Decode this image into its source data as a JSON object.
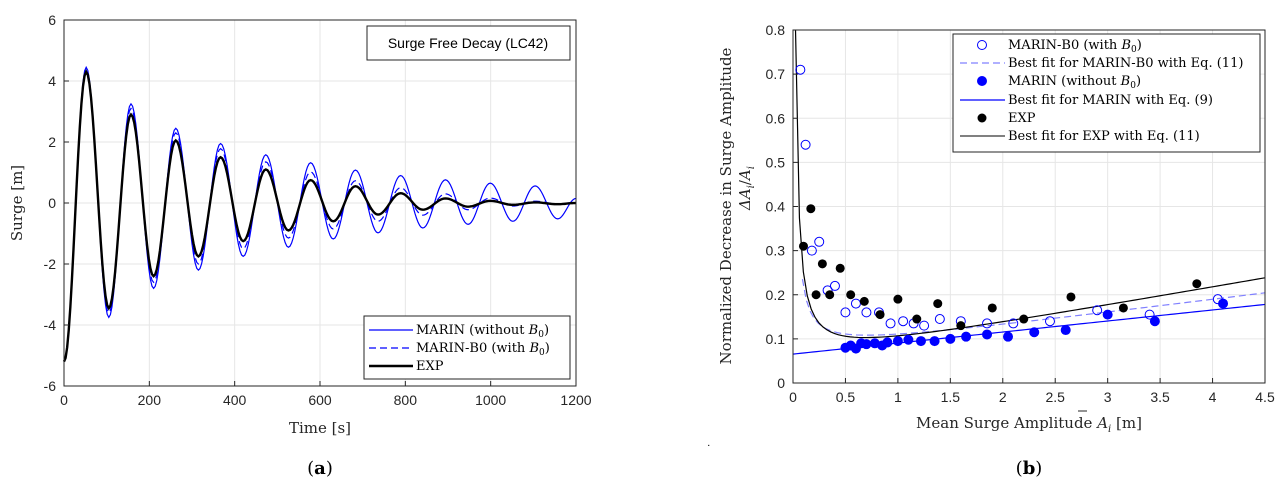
{
  "colors": {
    "marin": "#0000ff",
    "marin_b0": "#0000ff",
    "exp": "#000000",
    "fit_b0": "#8080ff",
    "grid": "#e6e6e6"
  },
  "chart_data": [
    {
      "type": "line",
      "title": "Surge Free Decay (LC42)",
      "xlabel": "Time [s]",
      "ylabel": "Surge [m]",
      "xlim": [
        0,
        1200
      ],
      "ylim": [
        -6,
        6
      ],
      "xticks": [
        "0",
        "200",
        "400",
        "600",
        "800",
        "1000",
        "1200"
      ],
      "yticks": [
        "-6",
        "-4",
        "-2",
        "0",
        "2",
        "4",
        "6"
      ],
      "grid": true,
      "legend_position": "bottom-right",
      "panel_label": "a",
      "series": [
        {
          "name": "MARIN (without B0)",
          "legend_label": "MARIN (without ",
          "legend_math": "B",
          "legend_sub": "0",
          "legend_end": ")",
          "style": "solid",
          "period": 105.3,
          "x0": 0,
          "y0": -5.2,
          "peaks": [
            [
              52,
              4.45
            ],
            [
              157,
              3.25
            ],
            [
              262,
              2.45
            ],
            [
              367,
              1.95
            ],
            [
              473,
              1.58
            ],
            [
              578,
              1.32
            ],
            [
              683,
              1.08
            ],
            [
              789,
              0.9
            ],
            [
              894,
              0.76
            ],
            [
              999,
              0.65
            ],
            [
              1104,
              0.56
            ]
          ],
          "troughs": [
            [
              105,
              -3.75
            ],
            [
              210,
              -2.8
            ],
            [
              315,
              -2.2
            ],
            [
              420,
              -1.75
            ],
            [
              526,
              -1.45
            ],
            [
              631,
              -1.18
            ],
            [
              736,
              -0.98
            ],
            [
              841,
              -0.82
            ],
            [
              947,
              -0.7
            ],
            [
              1052,
              -0.6
            ],
            [
              1157,
              -0.52
            ]
          ],
          "end": [
            1200,
            0.15
          ]
        },
        {
          "name": "MARIN-B0 (with B0)",
          "legend_label": "MARIN-B0 (with ",
          "legend_math": "B",
          "legend_sub": "0",
          "legend_end": ")",
          "style": "dashed",
          "period": 105.3,
          "x0": 0,
          "y0": -5.2,
          "peaks": [
            [
              52,
              4.35
            ],
            [
              157,
              3.1
            ],
            [
              262,
              2.3
            ],
            [
              367,
              1.78
            ],
            [
              473,
              1.35
            ],
            [
              578,
              1.02
            ],
            [
              683,
              0.73
            ],
            [
              789,
              0.5
            ],
            [
              894,
              0.3
            ],
            [
              999,
              0.16
            ],
            [
              1104,
              0.06
            ]
          ],
          "troughs": [
            [
              105,
              -3.6
            ],
            [
              210,
              -2.6
            ],
            [
              315,
              -2.0
            ],
            [
              420,
              -1.5
            ],
            [
              526,
              -1.15
            ],
            [
              631,
              -0.85
            ],
            [
              736,
              -0.6
            ],
            [
              841,
              -0.4
            ],
            [
              947,
              -0.22
            ],
            [
              1052,
              -0.1
            ],
            [
              1157,
              -0.03
            ]
          ],
          "end": [
            1200,
            0.02
          ]
        },
        {
          "name": "EXP",
          "legend_label": "EXP",
          "style": "solid-thick",
          "period": 105.3,
          "x0": 0,
          "y0": -5.2,
          "peaks": [
            [
              52,
              4.3
            ],
            [
              157,
              2.9
            ],
            [
              262,
              2.05
            ],
            [
              367,
              1.5
            ],
            [
              473,
              1.1
            ],
            [
              578,
              0.75
            ],
            [
              683,
              0.55
            ],
            [
              789,
              0.32
            ],
            [
              894,
              0.15
            ],
            [
              999,
              0.07
            ],
            [
              1104,
              0.02
            ]
          ],
          "troughs": [
            [
              105,
              -3.45
            ],
            [
              210,
              -2.4
            ],
            [
              315,
              -1.75
            ],
            [
              420,
              -1.25
            ],
            [
              526,
              -0.9
            ],
            [
              631,
              -0.6
            ],
            [
              736,
              -0.38
            ],
            [
              841,
              -0.22
            ],
            [
              947,
              -0.12
            ],
            [
              1052,
              -0.06
            ],
            [
              1157,
              -0.04
            ]
          ],
          "end": [
            1200,
            0.0
          ]
        }
      ]
    },
    {
      "type": "scatter",
      "xlabel_prefix": "Mean Surge Amplitude ",
      "xlabel_math": "A",
      "xlabel_sub": "i",
      "xlabel_unit": " [m]",
      "ylabel_line1": "Normalized Decrease in Surge Amplitude",
      "ylabel_line2_math": "ΔA",
      "ylabel_line2_sub": "i",
      "ylabel_line2_slash": "/",
      "ylabel_line2_den": "A",
      "ylabel_line2_densub": "i",
      "xlim": [
        0,
        4.5
      ],
      "ylim": [
        0,
        0.8
      ],
      "xticks": [
        "0",
        "0.5",
        "1",
        "1.5",
        "2",
        "2.5",
        "3",
        "3.5",
        "4",
        "4.5"
      ],
      "yticks": [
        "0",
        "0.1",
        "0.2",
        "0.3",
        "0.4",
        "0.5",
        "0.6",
        "0.7",
        "0.8"
      ],
      "grid": true,
      "legend_position": "top-right",
      "panel_label": "b",
      "series": [
        {
          "name": "MARIN-B0 (with B0)",
          "legend_label": "MARIN-B0 (with ",
          "legend_math": "B",
          "legend_sub": "0",
          "legend_end": ")",
          "marker": "open-circle",
          "points": [
            [
              0.07,
              0.71
            ],
            [
              0.12,
              0.54
            ],
            [
              0.18,
              0.3
            ],
            [
              0.25,
              0.32
            ],
            [
              0.33,
              0.21
            ],
            [
              0.4,
              0.22
            ],
            [
              0.5,
              0.16
            ],
            [
              0.6,
              0.18
            ],
            [
              0.7,
              0.16
            ],
            [
              0.82,
              0.16
            ],
            [
              0.93,
              0.135
            ],
            [
              1.05,
              0.14
            ],
            [
              1.15,
              0.135
            ],
            [
              1.25,
              0.13
            ],
            [
              1.4,
              0.145
            ],
            [
              1.6,
              0.14
            ],
            [
              1.85,
              0.135
            ],
            [
              2.1,
              0.135
            ],
            [
              2.45,
              0.14
            ],
            [
              2.9,
              0.165
            ],
            [
              3.4,
              0.155
            ],
            [
              4.05,
              0.19
            ]
          ]
        },
        {
          "name": "Best fit for MARIN-B0 with Eq. (11)",
          "legend_label": "Best fit for MARIN-B0 with Eq. (11)",
          "style": "dashed",
          "line": "fit_b0"
        },
        {
          "name": "MARIN (without B0)",
          "legend_label": "MARIN (without ",
          "legend_math": "B",
          "legend_sub": "0",
          "legend_end": ")",
          "marker": "filled-circle",
          "points": [
            [
              0.5,
              0.08
            ],
            [
              0.55,
              0.085
            ],
            [
              0.6,
              0.078
            ],
            [
              0.65,
              0.09
            ],
            [
              0.7,
              0.088
            ],
            [
              0.78,
              0.09
            ],
            [
              0.85,
              0.085
            ],
            [
              0.9,
              0.092
            ],
            [
              1.0,
              0.095
            ],
            [
              1.1,
              0.098
            ],
            [
              1.22,
              0.095
            ],
            [
              1.35,
              0.095
            ],
            [
              1.5,
              0.1
            ],
            [
              1.65,
              0.105
            ],
            [
              1.85,
              0.11
            ],
            [
              2.05,
              0.105
            ],
            [
              2.3,
              0.115
            ],
            [
              2.6,
              0.12
            ],
            [
              3.0,
              0.155
            ],
            [
              3.45,
              0.14
            ],
            [
              4.1,
              0.18
            ]
          ]
        },
        {
          "name": "Best fit for MARIN with Eq. (9)",
          "legend_label": "Best fit for MARIN with Eq. (9)",
          "style": "solid",
          "line": "fit_marin"
        },
        {
          "name": "EXP",
          "legend_label": "EXP",
          "marker": "filled-circle-black",
          "points": [
            [
              0.1,
              0.31
            ],
            [
              0.17,
              0.395
            ],
            [
              0.22,
              0.2
            ],
            [
              0.28,
              0.27
            ],
            [
              0.35,
              0.2
            ],
            [
              0.45,
              0.26
            ],
            [
              0.55,
              0.2
            ],
            [
              0.68,
              0.185
            ],
            [
              0.83,
              0.155
            ],
            [
              1.0,
              0.19
            ],
            [
              1.18,
              0.145
            ],
            [
              1.38,
              0.18
            ],
            [
              1.6,
              0.13
            ],
            [
              1.9,
              0.17
            ],
            [
              2.2,
              0.145
            ],
            [
              2.65,
              0.195
            ],
            [
              3.15,
              0.17
            ],
            [
              3.85,
              0.225
            ]
          ]
        },
        {
          "name": "Best fit for EXP with Eq. (11)",
          "legend_label": "Best fit for EXP with Eq. (11)",
          "style": "solid",
          "line": "fit_exp"
        }
      ]
    }
  ],
  "captions": {
    "a": "a",
    "b": "b"
  },
  "stray_mark": "˙"
}
